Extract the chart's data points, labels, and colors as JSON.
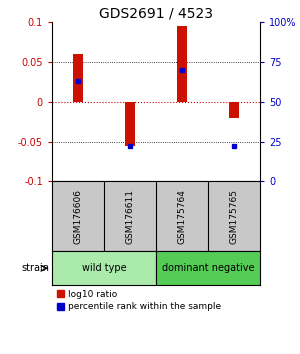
{
  "title": "GDS2691 / 4523",
  "samples": [
    "GSM176606",
    "GSM176611",
    "GSM175764",
    "GSM175765"
  ],
  "log10_ratios": [
    0.06,
    -0.055,
    0.095,
    -0.02
  ],
  "percentile_ranks": [
    63,
    22,
    70,
    22
  ],
  "groups": [
    {
      "label": "wild type",
      "samples": [
        0,
        1
      ],
      "color": "#aaeaaa"
    },
    {
      "label": "dominant negative",
      "samples": [
        2,
        3
      ],
      "color": "#55cc55"
    }
  ],
  "group_label": "strain",
  "ylim": [
    -0.1,
    0.1
  ],
  "yticks_left": [
    -0.1,
    -0.05,
    0,
    0.05,
    0.1
  ],
  "yticks_right": [
    0,
    25,
    50,
    75,
    100
  ],
  "ytick_labels_left": [
    "-0.1",
    "-0.05",
    "0",
    "0.05",
    "0.1"
  ],
  "ytick_labels_right": [
    "0",
    "25",
    "50",
    "75",
    "100%"
  ],
  "left_color": "#cc0000",
  "right_color": "#0000cc",
  "bar_color": "#cc1100",
  "dot_color": "#0000cc",
  "zero_line_color": "#cc0000",
  "legend_red_label": "log10 ratio",
  "legend_blue_label": "percentile rank within the sample",
  "background_color": "#ffffff",
  "title_fontsize": 10,
  "label_fontsize": 7,
  "bar_width": 0.18,
  "sample_box_color": "#c8c8c8",
  "sample_box_edge": "#888888"
}
